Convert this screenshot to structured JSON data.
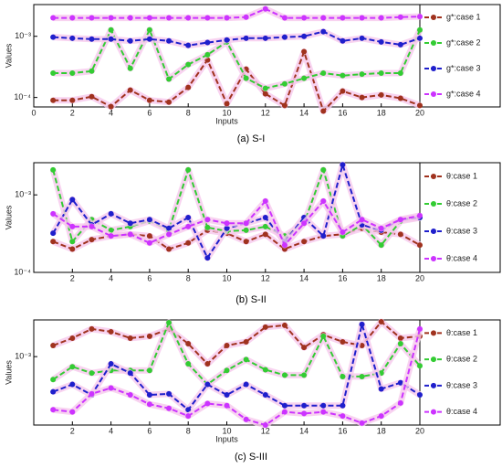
{
  "chart_data": [
    {
      "type": "line",
      "caption": "(a) S-I",
      "xlabel": "Inputs",
      "ylabel": "Values",
      "log": true,
      "x": [
        1,
        2,
        3,
        4,
        5,
        6,
        7,
        8,
        9,
        10,
        11,
        12,
        13,
        14,
        15,
        16,
        17,
        18,
        19,
        20
      ],
      "xlim": [
        0,
        20
      ],
      "xticks": [
        0,
        2,
        4,
        6,
        8,
        10,
        12,
        14,
        16,
        18,
        20
      ],
      "ylim": [
        7e-05,
        0.0033
      ],
      "yticks": [
        {
          "value": 0.0001,
          "label": "10⁻⁴"
        },
        {
          "value": 0.001,
          "label": "10⁻³"
        }
      ],
      "series": [
        {
          "name": "g*:case 1",
          "color": "#a0321e",
          "values": [
            9e-05,
            9e-05,
            0.000103,
            7.1e-05,
            0.000132,
            9e-05,
            8.4e-05,
            0.000146,
            0.00041,
            7.9e-05,
            0.00029,
            0.000115,
            7.4e-05,
            0.00056,
            6e-05,
            0.000127,
            0.0001,
            0.00011,
            9.7e-05,
            7.4e-05
          ]
        },
        {
          "name": "g*:case 2",
          "color": "#33cc33",
          "values": [
            0.00025,
            0.00025,
            0.00027,
            0.00127,
            0.0003,
            0.00127,
            0.0002,
            0.000345,
            0.0005,
            0.00081,
            0.000206,
            0.000141,
            0.000167,
            0.000206,
            0.00025,
            0.000228,
            0.00024,
            0.00025,
            0.00025,
            0.00127
          ]
        },
        {
          "name": "g*:case 3",
          "color": "#1f1fcc",
          "values": [
            0.00097,
            0.00093,
            0.0009,
            0.0009,
            0.00084,
            0.0009,
            0.00084,
            0.00071,
            0.00079,
            0.00087,
            0.00093,
            0.00093,
            0.00097,
            0.001,
            0.00119,
            0.00084,
            0.00093,
            0.00081,
            0.00073,
            0.00093
          ]
        },
        {
          "name": "g*:case 4",
          "color": "#cc33ff",
          "values": [
            0.002,
            0.002,
            0.002,
            0.002,
            0.002,
            0.002,
            0.002,
            0.002,
            0.002,
            0.002,
            0.00206,
            0.0028,
            0.002,
            0.002,
            0.002,
            0.002,
            0.002,
            0.002,
            0.00206,
            0.0021
          ]
        }
      ]
    },
    {
      "type": "line",
      "caption": "(b) S-II",
      "ylabel": "Values",
      "log": true,
      "x": [
        1,
        2,
        3,
        4,
        5,
        6,
        7,
        8,
        9,
        10,
        11,
        12,
        13,
        14,
        15,
        16,
        17,
        18,
        19,
        20
      ],
      "xlim": [
        0,
        20
      ],
      "xticks": [
        2,
        4,
        6,
        8,
        10,
        12,
        14,
        16,
        18,
        20
      ],
      "ylim": [
        0.0001,
        0.0026
      ],
      "yticks": [
        {
          "value": 0.0001,
          "label": "10⁻⁴"
        },
        {
          "value": 0.001,
          "label": "10⁻³"
        }
      ],
      "series": [
        {
          "name": "θ:case 1",
          "color": "#a0321e",
          "values": [
            0.00025,
            0.0002,
            0.000265,
            0.000295,
            0.00031,
            0.000295,
            0.0002,
            0.00024,
            0.00035,
            0.00032,
            0.00025,
            0.00031,
            0.0002,
            0.00025,
            0.000295,
            0.00031,
            0.00037,
            0.00033,
            0.00031,
            0.000225
          ]
        },
        {
          "name": "θ:case 2",
          "color": "#33cc33",
          "values": [
            0.0021,
            0.00025,
            0.00048,
            0.00035,
            0.00039,
            0.00046,
            0.00035,
            0.0021,
            0.00038,
            0.00034,
            0.00035,
            0.00039,
            0.000295,
            0.00043,
            0.0021,
            0.000295,
            0.00041,
            0.000225,
            0.00046,
            0.00051
          ]
        },
        {
          "name": "θ:case 3",
          "color": "#1f1fcc",
          "values": [
            0.00032,
            0.00087,
            0.00041,
            0.00057,
            0.00043,
            0.00048,
            0.00037,
            0.00051,
            0.000154,
            0.00037,
            0.00043,
            0.00051,
            0.00025,
            0.00051,
            0.000295,
            0.00245,
            0.00041,
            0.00035,
            0.00048,
            0.00051
          ]
        },
        {
          "name": "θ:case 4",
          "color": "#cc33ff",
          "values": [
            0.00057,
            0.00039,
            0.00039,
            0.000295,
            0.00031,
            0.00024,
            0.00031,
            0.00039,
            0.00048,
            0.00043,
            0.00043,
            0.00083,
            0.000225,
            0.00043,
            0.00083,
            0.00033,
            0.00048,
            0.00037,
            0.00048,
            0.00054
          ]
        }
      ]
    },
    {
      "type": "line",
      "caption": "(c) S-III",
      "xlabel": "Inputs",
      "ylabel": "Values",
      "log": true,
      "x": [
        1,
        2,
        3,
        4,
        5,
        6,
        7,
        8,
        9,
        10,
        11,
        12,
        13,
        14,
        15,
        16,
        17,
        18,
        19,
        20
      ],
      "xlim": [
        0,
        20
      ],
      "xticks": [
        2,
        4,
        6,
        8,
        10,
        12,
        14,
        16,
        18,
        20
      ],
      "ylim": [
        0.00024,
        0.00215
      ],
      "yticks": [
        {
          "value": 0.001,
          "label": "10⁻³"
        }
      ],
      "series": [
        {
          "name": "θ:case 1",
          "color": "#a0321e",
          "values": [
            0.00126,
            0.00147,
            0.00178,
            0.00168,
            0.00147,
            0.00153,
            0.00178,
            0.00131,
            0.00086,
            0.00126,
            0.00136,
            0.00185,
            0.00192,
            0.00121,
            0.00158,
            0.00136,
            0.00126,
            0.00207,
            0.00147,
            0.00153
          ]
        },
        {
          "name": "θ:case 2",
          "color": "#33cc33",
          "values": [
            0.00062,
            0.00081,
            0.00071,
            0.00075,
            0.00075,
            0.00075,
            0.00203,
            0.00086,
            0.00056,
            0.00075,
            0.00094,
            0.00076,
            0.00068,
            0.00068,
            0.00153,
            0.00066,
            0.00066,
            0.00071,
            0.00131,
            0.000825
          ]
        },
        {
          "name": "θ:case 3",
          "color": "#1f1fcc",
          "values": [
            0.00048,
            0.00056,
            0.00045,
            0.00086,
            0.00071,
            0.00045,
            0.00046,
            0.00033,
            0.00056,
            0.00045,
            0.00056,
            0.00045,
            0.00036,
            0.00036,
            0.00036,
            0.00036,
            0.00196,
            0.00051,
            0.00058,
            0.00045
          ]
        },
        {
          "name": "θ:case 4",
          "color": "#cc33ff",
          "values": [
            0.00033,
            0.000316,
            0.00046,
            0.00052,
            0.00045,
            0.00037,
            0.00034,
            0.00029,
            0.000376,
            0.00036,
            0.00027,
            0.00024,
            0.000316,
            0.000305,
            0.000316,
            0.00029,
            0.00025,
            0.00029,
            0.00038,
            0.00178
          ]
        }
      ]
    }
  ]
}
